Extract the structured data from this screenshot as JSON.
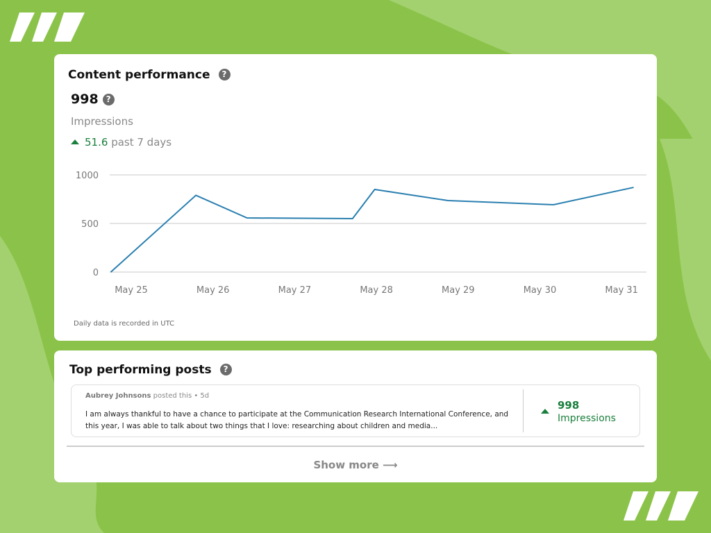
{
  "colors": {
    "background": "#8bc34a",
    "accent": "#1a7f3c",
    "line": "#2a7fb0"
  },
  "performance": {
    "title": "Content performance",
    "help_icon": "?",
    "value": "998",
    "value_label": "Impressions",
    "change": "51.6",
    "change_suffix": "past 7 days",
    "note": "Daily data is recorded in UTC"
  },
  "chart_data": {
    "type": "line",
    "y_ticks": [
      0,
      500,
      1000
    ],
    "ylim": [
      0,
      1000
    ],
    "x_ticks": [
      "May 25",
      "May 26",
      "May 27",
      "May 28",
      "May 29",
      "May 30",
      "May 31"
    ],
    "grid": true,
    "points": [
      {
        "x": "May 24 18:00",
        "y": 0
      },
      {
        "x": "May 25 19:00",
        "y": 790
      },
      {
        "x": "May 26 10:00",
        "y": 557
      },
      {
        "x": "May 27 17:00",
        "y": 550
      },
      {
        "x": "May 27 23:30",
        "y": 850
      },
      {
        "x": "May 28 21:00",
        "y": 736
      },
      {
        "x": "May 30 04:00",
        "y": 693
      },
      {
        "x": "May 31 03:30",
        "y": 871
      }
    ]
  },
  "top_posts": {
    "title": "Top performing posts",
    "posts": [
      {
        "author": "Aubrey Johnsons",
        "meta": "posted this • 5d",
        "text": "I am always thankful to have a chance to participate at the Communication Research International Conference, and this year, I was able to talk about two things that I love: researching about children and media...",
        "impressions": "998",
        "impressions_label": "Impressions"
      }
    ],
    "show_more": "Show more ⟶"
  }
}
